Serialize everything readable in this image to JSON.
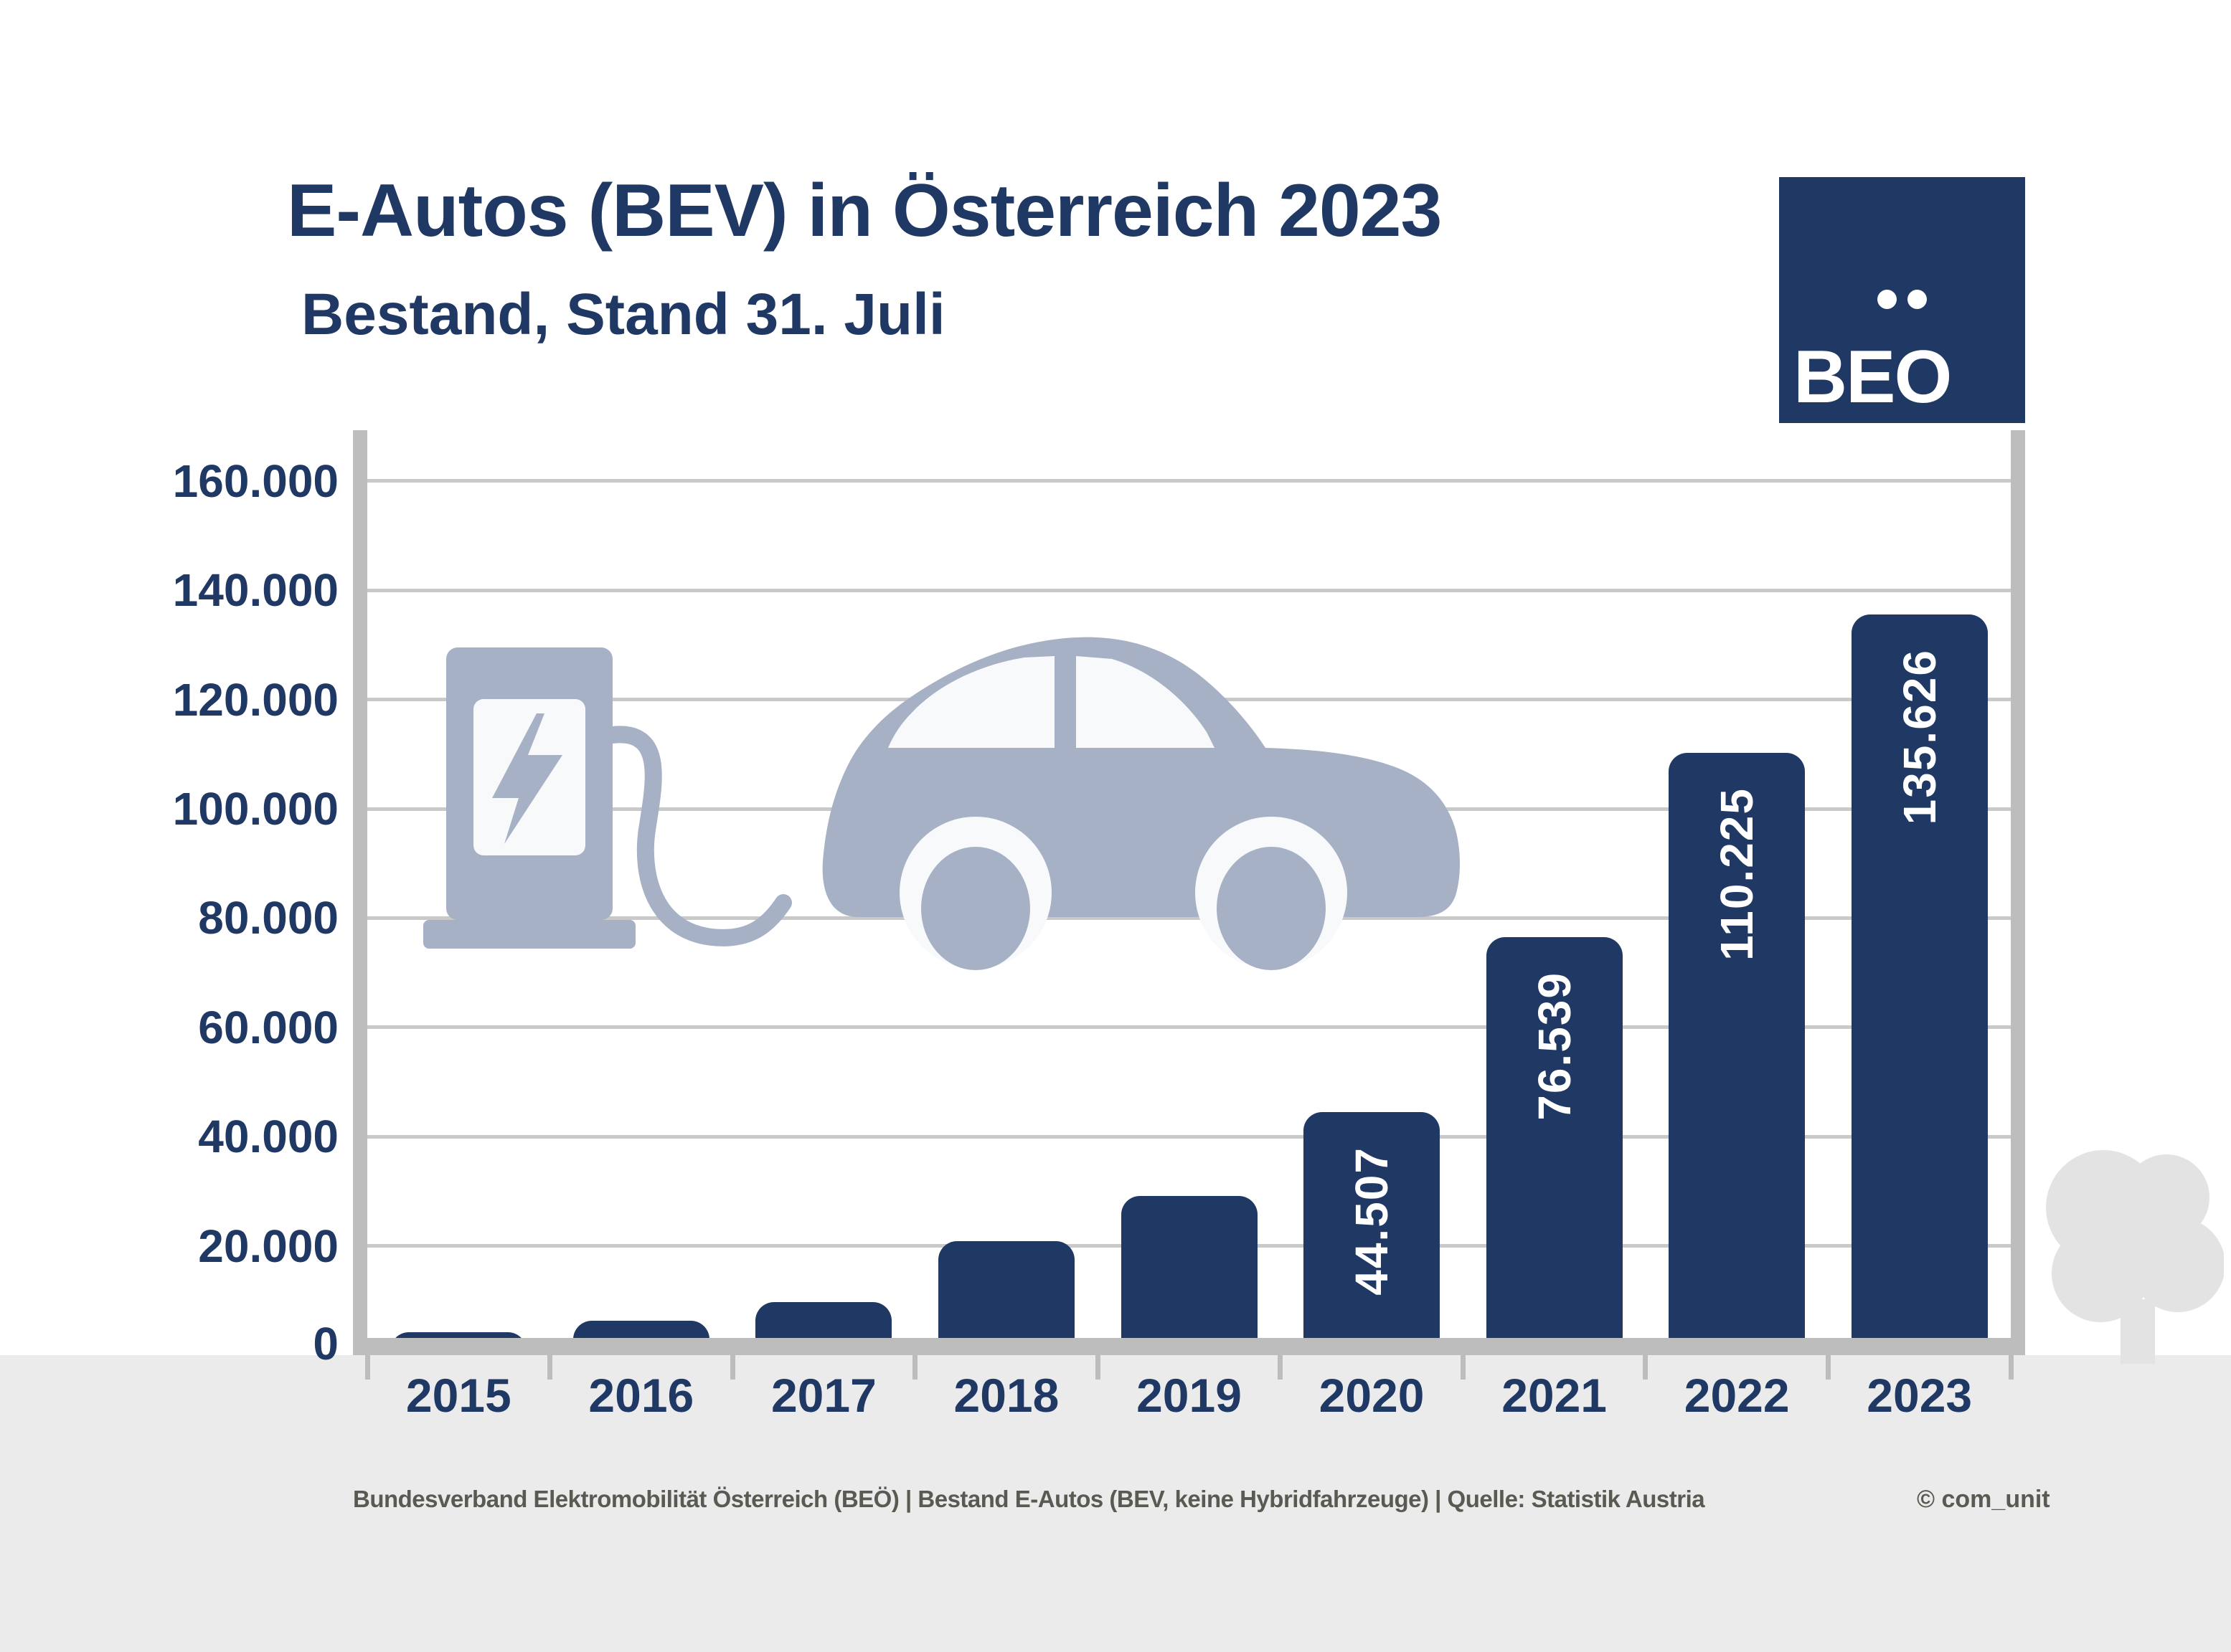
{
  "header": {
    "title": "E-Autos (BEV) in Österreich 2023",
    "subtitle": "Bestand, Stand 31. Juli"
  },
  "logo": {
    "text": "BEO",
    "umlaut_dots": 2,
    "organisation": "BEÖ"
  },
  "chart_data": {
    "type": "bar",
    "title": "E-Autos (BEV) in Österreich 2023 – Bestand, Stand 31. Juli",
    "categories": [
      "2015",
      "2016",
      "2017",
      "2018",
      "2019",
      "2020",
      "2021",
      "2022",
      "2023"
    ],
    "values": [
      4200,
      6300,
      9700,
      20900,
      29100,
      44507,
      76539,
      110225,
      135626
    ],
    "value_labels": [
      "",
      "",
      "",
      "",
      "",
      "44.507",
      "76.539",
      "110.225",
      "135.626"
    ],
    "values_note": "2015-2019 bars carry no data labels in the image; their values are estimated from bar heights",
    "xlabel": "",
    "ylabel": "",
    "ylim": [
      0,
      168000
    ],
    "yticks": [
      0,
      20000,
      40000,
      60000,
      80000,
      100000,
      120000,
      140000,
      160000
    ],
    "ytick_labels": [
      "0",
      "20.000",
      "40.000",
      "60.000",
      "80.000",
      "100.000",
      "120.000",
      "140.000",
      "160.000"
    ],
    "grid": true,
    "legend": false,
    "bar_color": "#1f3864",
    "bar_label_color": "#ffffff"
  },
  "footer": {
    "source": "Bundesverband Elektromobilität Österreich (BEÖ) | Bestand E-Autos (BEV, keine Hybridfahrzeuge) | Quelle: Statistik Austria",
    "credit": "© com_unit"
  },
  "icons": {
    "ev_graphic": "charging-station-with-cable-and-car",
    "tree": "tree-silhouette"
  },
  "colors": {
    "navy": "#1f3864",
    "graphic_blue": "#a6b1c5",
    "window_white": "#f8f9fb",
    "grid": "#c9c9c9",
    "axis": "#bdbdbd",
    "band": "#ebebeb",
    "tree": "#e3e3e3",
    "footer_text": "#5a5a52"
  }
}
